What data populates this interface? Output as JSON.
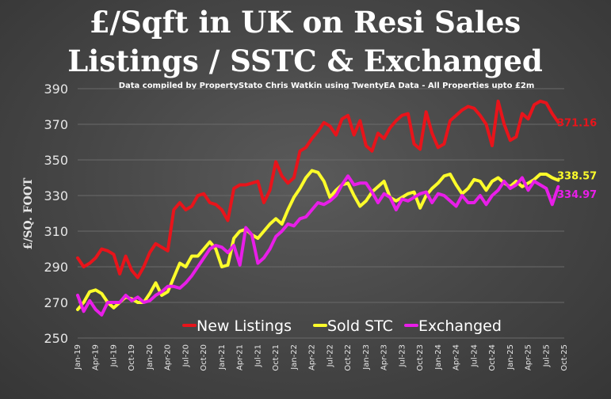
{
  "chart_data": {
    "type": "line",
    "title_line1": "£/Sqft in UK on Resi Sales",
    "title_line2": "Listings / SSTC & Exchanged",
    "subtitle": "Data compiled by PropertyStato Chris Watkin using TwentyEA Data - All Properties upto £2m",
    "ylabel": "£/SQ. FOOT",
    "ylim": [
      250,
      390
    ],
    "yticks": [
      250,
      270,
      290,
      310,
      330,
      350,
      370,
      390
    ],
    "xlim": [
      0,
      81
    ],
    "xtick_labels": [
      "Jan-19",
      "Apr-19",
      "Jul-19",
      "Oct-19",
      "Jan-20",
      "Apr-20",
      "Jul-20",
      "Oct-20",
      "Jan-21",
      "Apr-21",
      "Jul-21",
      "Oct-21",
      "Jan-22",
      "Apr-22",
      "Jul-22",
      "Oct-22",
      "Jan-23",
      "Apr-23",
      "Jul-23",
      "Oct-23",
      "Jan-24",
      "Apr-24",
      "Jul-24",
      "Oct-24",
      "Jan-25",
      "Apr-25",
      "Jul-25",
      "Oct-25"
    ],
    "grid": true,
    "legend_position": "bottom-center",
    "series": [
      {
        "name": "New Listings",
        "color": "#e8141b",
        "end_label": "371.16",
        "values": [
          295,
          290,
          292,
          295,
          300,
          299,
          297,
          286,
          296,
          288,
          284,
          290,
          298,
          303,
          301,
          299,
          322,
          326,
          322,
          324,
          330,
          331,
          326,
          325,
          322,
          316,
          334,
          336,
          336,
          337,
          338,
          326,
          333,
          349,
          341,
          337,
          340,
          355,
          357,
          362,
          366,
          371,
          369,
          364,
          373,
          375,
          364,
          372,
          358,
          355,
          365,
          362,
          368,
          372,
          375,
          376,
          359,
          356,
          377,
          365,
          357,
          359,
          372,
          375,
          378,
          380,
          379,
          375,
          370,
          358,
          383,
          370,
          361,
          363,
          376,
          373,
          381,
          383,
          382,
          376,
          371.16
        ]
      },
      {
        "name": "Sold STC",
        "color": "#fcfc2a",
        "end_label": "338.57",
        "values": [
          266,
          270,
          276,
          277,
          275,
          270,
          267,
          270,
          273,
          272,
          270,
          270,
          275,
          281,
          274,
          276,
          284,
          292,
          290,
          296,
          296,
          300,
          304,
          300,
          290,
          291,
          306,
          310,
          311,
          308,
          306,
          310,
          314,
          317,
          314,
          322,
          329,
          334,
          340,
          344,
          343,
          338,
          329,
          333,
          336,
          337,
          330,
          324,
          327,
          332,
          335,
          338,
          329,
          327,
          329,
          331,
          332,
          323,
          330,
          334,
          337,
          341,
          342,
          336,
          331,
          334,
          339,
          338,
          333,
          338,
          340,
          337,
          335,
          338,
          335,
          337,
          339,
          342,
          342,
          340,
          338.57
        ]
      },
      {
        "name": "Exchanged",
        "color": "#e81ee8",
        "end_label": "334.97",
        "values": [
          274,
          265,
          271,
          266,
          263,
          270,
          270,
          270,
          274,
          271,
          273,
          270,
          271,
          274,
          276,
          279,
          279,
          278,
          281,
          285,
          290,
          295,
          300,
          302,
          301,
          298,
          302,
          291,
          312,
          308,
          292,
          295,
          300,
          307,
          310,
          314,
          313,
          317,
          318,
          322,
          326,
          325,
          327,
          330,
          336,
          341,
          336,
          337,
          337,
          332,
          326,
          331,
          329,
          322,
          328,
          327,
          329,
          331,
          332,
          326,
          331,
          330,
          327,
          324,
          330,
          326,
          326,
          330,
          325,
          330,
          333,
          338,
          334,
          336,
          340,
          333,
          338,
          336,
          334,
          325,
          334.97
        ]
      }
    ]
  }
}
